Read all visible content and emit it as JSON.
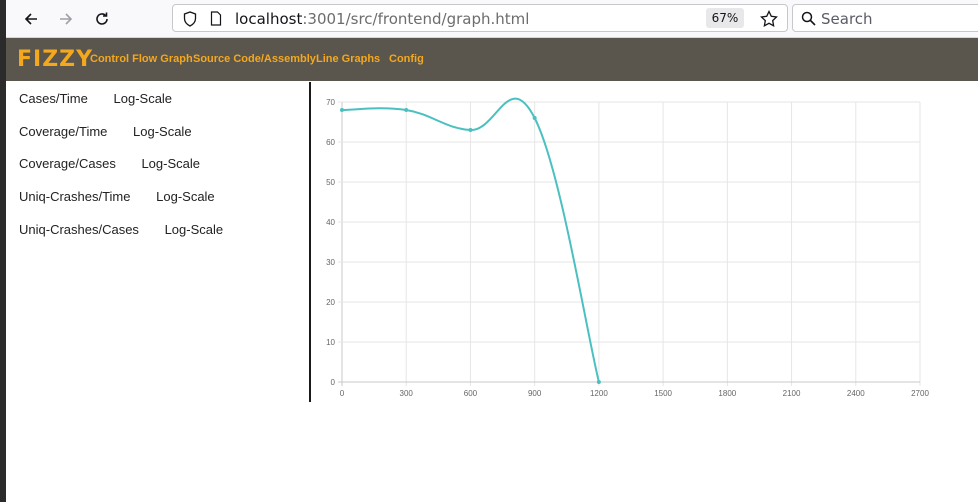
{
  "browser": {
    "url_host": "localhost",
    "url_rest": ":3001/src/frontend/graph.html",
    "zoom": "67%",
    "search_placeholder": "Search",
    "icons": [
      "back-arrow-icon",
      "forward-arrow-icon",
      "reload-icon",
      "shield-icon",
      "page-icon",
      "star-icon",
      "search-icon"
    ]
  },
  "header": {
    "logo": "FIZZY",
    "nav": [
      "Control Flow Graph",
      "Source Code/Assembly",
      "Line Graphs",
      "Config"
    ],
    "accent_color": "#f4a81d",
    "background_color": "#5a554d"
  },
  "sidebar": {
    "items": [
      {
        "label": "Cases/Time",
        "log": "Log-Scale"
      },
      {
        "label": "Coverage/Time",
        "log": "Log-Scale"
      },
      {
        "label": "Coverage/Cases",
        "log": "Log-Scale"
      },
      {
        "label": "Uniq-Crashes/Time",
        "log": "Log-Scale"
      },
      {
        "label": "Uniq-Crashes/Cases",
        "log": "Log-Scale"
      }
    ]
  },
  "chart_data": {
    "type": "line",
    "title": "",
    "xlabel": "",
    "ylabel": "",
    "xlim": [
      0,
      2700
    ],
    "ylim": [
      0,
      70
    ],
    "x_ticks": [
      0,
      300,
      600,
      900,
      1200,
      1500,
      1800,
      2100,
      2400,
      2700
    ],
    "y_ticks": [
      0,
      10,
      20,
      30,
      40,
      50,
      60,
      70
    ],
    "grid": true,
    "line_color": "#4bc0c0",
    "series": [
      {
        "x": [
          0,
          300,
          600,
          900,
          1200
        ],
        "y": [
          68,
          68,
          63,
          66,
          0
        ]
      }
    ]
  }
}
